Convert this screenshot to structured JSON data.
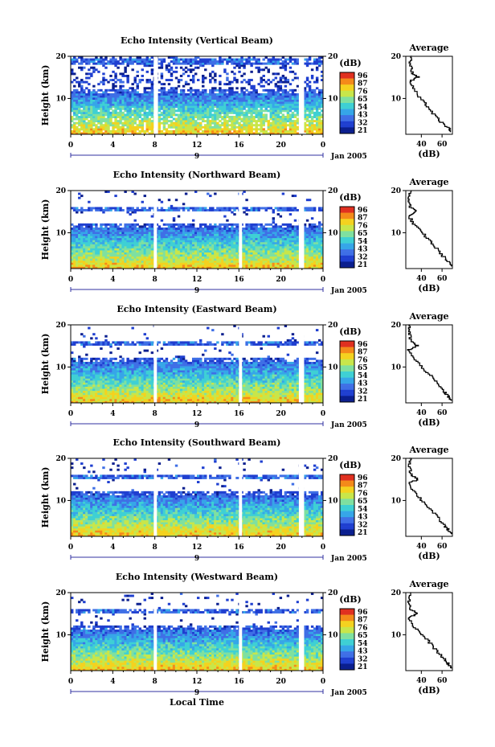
{
  "figure": {
    "date_label": "Jan 2005",
    "xlabel": "Local Time",
    "avg_title": "Average",
    "avg_xlabel": "(dB)",
    "cbar_label": "(dB)",
    "xticks": [
      "0",
      "4",
      "8",
      "12",
      "16",
      "20",
      "0"
    ],
    "day_marker": "9",
    "yticks_main": [
      "20",
      "10"
    ],
    "yticks_avg": [
      "20",
      "10"
    ],
    "avg_xticks": [
      "40",
      "60"
    ],
    "ylabel": "Height (km)"
  },
  "colors": {
    "colormap": [
      "#0b1f8f",
      "#1f3fd0",
      "#3f6fe6",
      "#36a6e8",
      "#3fd0d4",
      "#7fe0a0",
      "#c8e64a",
      "#f4d21f",
      "#f48a1a",
      "#e03020"
    ],
    "background": "#ffffff"
  },
  "chart_data": [
    {
      "type": "heatmap",
      "title": "Echo Intensity (Vertical Beam)",
      "ylabel": "Height (km)",
      "xlabel": "Local Time",
      "x_range_hours": [
        0,
        24
      ],
      "y_range_km": [
        1.5,
        20
      ],
      "colorbar": {
        "label": "(dB)",
        "ticks": [
          96,
          87,
          76,
          65,
          54,
          43,
          32,
          21
        ]
      },
      "data_gaps_hours": [
        [
          7.9,
          8.3
        ],
        [
          21.7,
          22.2
        ]
      ],
      "average_profile": {
        "title": "Average",
        "xlabel": "(dB)",
        "x_range": [
          25,
          70
        ],
        "xticks": [
          40,
          60
        ],
        "height_km": [
          20,
          18,
          16,
          15,
          14,
          12,
          10,
          8,
          6,
          4,
          3,
          2
        ],
        "db": [
          31,
          29,
          31,
          37,
          29,
          33,
          38,
          46,
          52,
          60,
          66,
          68
        ]
      }
    },
    {
      "type": "heatmap",
      "title": "Echo Intensity (Northward Beam)",
      "ylabel": "Height (km)",
      "xlabel": "Local Time",
      "x_range_hours": [
        0,
        24
      ],
      "y_range_km": [
        1.5,
        20
      ],
      "colorbar": {
        "label": "(dB)",
        "ticks": [
          96,
          87,
          76,
          65,
          54,
          43,
          32,
          21
        ]
      },
      "data_gaps_hours": [
        [
          7.9,
          8.2
        ],
        [
          16.0,
          16.3
        ],
        [
          21.7,
          22.2
        ]
      ],
      "average_profile": {
        "title": "Average",
        "xlabel": "(dB)",
        "x_range": [
          25,
          70
        ],
        "xticks": [
          40,
          60
        ],
        "height_km": [
          20,
          18,
          16,
          15,
          14,
          12,
          10,
          8,
          6,
          4,
          3,
          2
        ],
        "db": [
          29,
          28,
          29,
          36,
          28,
          32,
          40,
          48,
          55,
          62,
          66,
          69
        ]
      }
    },
    {
      "type": "heatmap",
      "title": "Echo Intensity (Eastward Beam)",
      "ylabel": "Height (km)",
      "xlabel": "Local Time",
      "x_range_hours": [
        0,
        24
      ],
      "y_range_km": [
        1.5,
        20
      ],
      "colorbar": {
        "label": "(dB)",
        "ticks": [
          96,
          87,
          76,
          65,
          54,
          43,
          32,
          21
        ]
      },
      "data_gaps_hours": [
        [
          7.9,
          8.2
        ],
        [
          16.0,
          16.3
        ],
        [
          21.7,
          22.2
        ]
      ],
      "average_profile": {
        "title": "Average",
        "xlabel": "(dB)",
        "x_range": [
          25,
          70
        ],
        "xticks": [
          40,
          60
        ],
        "height_km": [
          20,
          18,
          16,
          15,
          14,
          12,
          10,
          8,
          6,
          4,
          3,
          2
        ],
        "db": [
          29,
          28,
          30,
          36,
          28,
          32,
          40,
          48,
          55,
          62,
          66,
          69
        ]
      }
    },
    {
      "type": "heatmap",
      "title": "Echo Intensity (Southward Beam)",
      "ylabel": "Height (km)",
      "xlabel": "Local Time",
      "x_range_hours": [
        0,
        24
      ],
      "y_range_km": [
        1.5,
        20
      ],
      "colorbar": {
        "label": "(dB)",
        "ticks": [
          96,
          87,
          76,
          65,
          54,
          43,
          32,
          21
        ]
      },
      "data_gaps_hours": [
        [
          7.9,
          8.2
        ],
        [
          16.0,
          16.3
        ],
        [
          21.7,
          22.2
        ]
      ],
      "average_profile": {
        "title": "Average",
        "xlabel": "(dB)",
        "x_range": [
          25,
          70
        ],
        "xticks": [
          40,
          60
        ],
        "height_km": [
          20,
          18,
          16,
          15,
          14,
          12,
          10,
          8,
          6,
          4,
          3,
          2
        ],
        "db": [
          29,
          28,
          30,
          37,
          28,
          33,
          40,
          48,
          55,
          62,
          66,
          69
        ]
      }
    },
    {
      "type": "heatmap",
      "title": "Echo Intensity (Westward Beam)",
      "ylabel": "Height (km)",
      "xlabel": "Local Time",
      "x_range_hours": [
        0,
        24
      ],
      "y_range_km": [
        1.5,
        20
      ],
      "colorbar": {
        "label": "(dB)",
        "ticks": [
          96,
          87,
          76,
          65,
          54,
          43,
          32,
          21
        ]
      },
      "data_gaps_hours": [
        [
          7.9,
          8.2
        ],
        [
          16.0,
          16.3
        ],
        [
          21.7,
          22.2
        ]
      ],
      "average_profile": {
        "title": "Average",
        "xlabel": "(dB)",
        "x_range": [
          25,
          70
        ],
        "xticks": [
          40,
          60
        ],
        "height_km": [
          20,
          18,
          16,
          15,
          14,
          12,
          10,
          8,
          6,
          4,
          3,
          2
        ],
        "db": [
          29,
          28,
          30,
          37,
          28,
          32,
          40,
          48,
          55,
          62,
          66,
          69
        ]
      }
    }
  ]
}
